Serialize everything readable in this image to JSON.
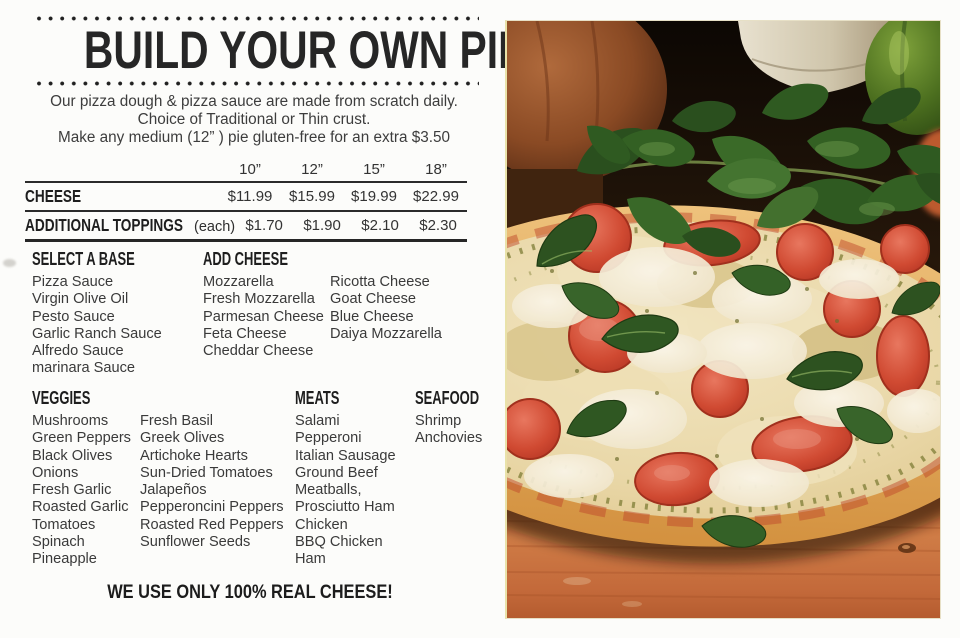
{
  "title": "BUILD YOUR OWN PIE",
  "intro": {
    "line1": "Our pizza dough & pizza sauce are made from scratch daily.",
    "line2": "Choice of Traditional or Thin crust.",
    "line3": "Make any medium (12” ) pie gluten-free for an extra $3.50"
  },
  "price_table": {
    "sizes": [
      "10”",
      "12”",
      "15”",
      "18”"
    ],
    "rows": [
      {
        "label": "CHEESE",
        "note": "",
        "prices": [
          "$11.99",
          "$15.99",
          "$19.99",
          "$22.99"
        ]
      },
      {
        "label": "ADDITIONAL TOPPINGS",
        "note": "(each)",
        "prices": [
          "$1.70",
          "$1.90",
          "$2.10",
          "$2.30"
        ]
      }
    ]
  },
  "sections": {
    "base": {
      "heading": "SELECT A BASE",
      "items": [
        "Pizza Sauce",
        "Virgin Olive Oil",
        "Pesto Sauce",
        "Garlic Ranch Sauce",
        "Alfredo Sauce",
        "marinara Sauce"
      ]
    },
    "add_cheese": {
      "heading": "ADD CHEESE",
      "col1": [
        "Mozzarella",
        "Fresh Mozzarella",
        "Parmesan Cheese",
        "Feta Cheese",
        "Cheddar Cheese"
      ],
      "col2": [
        "Ricotta Cheese",
        "Goat Cheese",
        "Blue Cheese",
        "Daiya Mozzarella"
      ]
    },
    "veggies": {
      "heading": "VEGGIES",
      "col1": [
        "Mushrooms",
        "Green Peppers",
        "Black Olives",
        "Onions",
        "Fresh Garlic",
        "Roasted Garlic",
        "Tomatoes",
        "Spinach",
        "Pineapple"
      ],
      "col2": [
        "Fresh Basil",
        "Greek Olives",
        "Artichoke Hearts",
        "Sun-Dried Tomatoes",
        "Jalapeños",
        "Pepperoncini Peppers",
        "Roasted Red Peppers",
        "Sunflower Seeds"
      ]
    },
    "meats": {
      "heading": "MEATS",
      "items": [
        "Salami",
        "Pepperoni",
        "Italian Sausage",
        "Ground Beef",
        "Meatballs,",
        "Prosciutto Ham",
        "Chicken",
        "BBQ Chicken",
        "Ham"
      ]
    },
    "seafood": {
      "heading": "SEAFOOD",
      "items": [
        "Shrimp",
        "Anchovies"
      ]
    }
  },
  "footer_tagline": "WE USE ONLY 100% REAL CHEESE!",
  "photo": {
    "description": "Margherita pizza topped with tomato slices, fresh basil and mozzarella on a wooden board, basil bunch, onion, crock and green pepper behind"
  },
  "colors": {
    "ink": "#262626",
    "body_text": "#3a3a3a",
    "paper": "#fcfcfa",
    "tomato_red": "#cf4a32",
    "basil_green": "#2f5a21",
    "board_wood": "#c06a38",
    "crust_gold": "#d89b4c"
  }
}
